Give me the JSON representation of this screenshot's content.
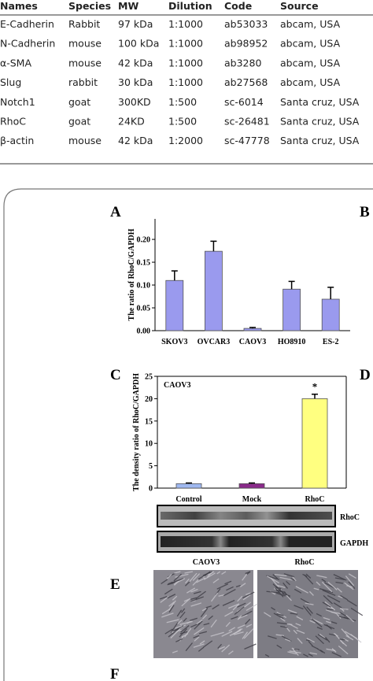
{
  "table": {
    "header": [
      "Names",
      "Species",
      "MW",
      "Dilution",
      "Code",
      "Source"
    ],
    "rows": [
      [
        "E-Cadherin",
        "Rabbit",
        "97 kDa",
        "1:1000",
        "ab53033",
        "abcam, USA"
      ],
      [
        "N-Cadherin",
        "mouse",
        "100 kDa",
        "1:1000",
        "ab98952",
        "abcam, USA"
      ],
      [
        "α-SMA",
        "mouse",
        "42 kDa",
        "1:1000",
        "ab3280",
        "abcam, USA"
      ],
      [
        "Slug",
        "rabbit",
        "30 kDa",
        "1:1000",
        "ab27568",
        "abcam, USA"
      ],
      [
        "Notch1",
        "goat",
        "300KD",
        "1:500",
        "sc-6014",
        "Santa cruz, USA"
      ],
      [
        "RhoC",
        "goat",
        "24KD",
        "1:500",
        "sc-26481",
        "Santa cruz, USA"
      ],
      [
        "β-actin",
        "mouse",
        "42 kDa",
        "1:2000",
        "sc-47778",
        "Santa cruz, USA"
      ]
    ]
  },
  "panel_letters": [
    "A",
    "B",
    "C",
    "D",
    "E",
    "F"
  ],
  "chart_data": [
    {
      "type": "bar",
      "y_label": "The ratio of RhoC/GAPDH",
      "categories": [
        "SKOV3",
        "OVCAR3",
        "CAOV3",
        "HO8910",
        "ES-2"
      ],
      "values": [
        0.11,
        0.174,
        0.005,
        0.091,
        0.069
      ],
      "errors": [
        0.021,
        0.022,
        0.002,
        0.017,
        0.026
      ],
      "colors": [
        "#9a9aee",
        "#9a9aee",
        "#9a9aee",
        "#9a9aee",
        "#9a9aee"
      ],
      "ylim": [
        0,
        0.245
      ],
      "yticks": [
        {
          "value": 0,
          "label": "0.00"
        },
        {
          "value": 0.05,
          "label": "0.05"
        },
        {
          "value": 0.1,
          "label": "0.10"
        },
        {
          "value": 0.15,
          "label": "0.15"
        },
        {
          "value": 0.2,
          "label": "0.20"
        }
      ]
    },
    {
      "type": "bar",
      "y_label": "The density ratio of RhoC/GAPDH",
      "annotation": "CAOV3",
      "significance": "*",
      "categories": [
        "Control",
        "Mock",
        "RhoC"
      ],
      "values": [
        1,
        1,
        20
      ],
      "errors": [
        0.15,
        0.15,
        1
      ],
      "colors": [
        "#9fb8f0",
        "#8a2a8a",
        "#ffff80"
      ],
      "ylim": [
        0,
        25
      ],
      "yticks": [
        0,
        5,
        10,
        15,
        20,
        25
      ]
    }
  ],
  "blot": {
    "labels": [
      "RhoC",
      "GAPDH"
    ]
  },
  "micrographs": {
    "labels": [
      "CAOV3",
      "RhoC"
    ]
  }
}
